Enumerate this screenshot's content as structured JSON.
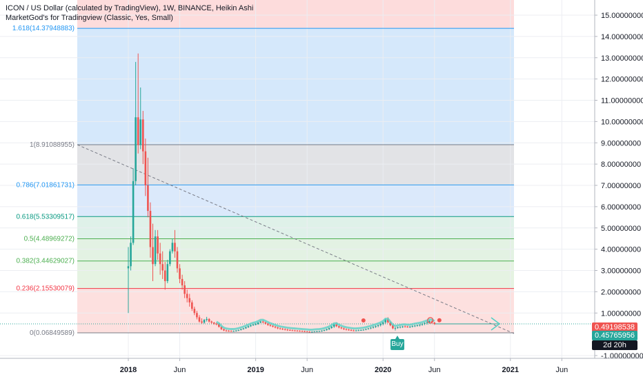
{
  "header": {
    "title": "ICON / US Dollar (calculated by TradingView), 1W, BINANCE, Heikin Ashi",
    "indicator": "MarketGod's for Tradingview (Classic, Yes, Small)"
  },
  "colors": {
    "up": "#26a69a",
    "down": "#ef5350",
    "grid": "#e1e3e8"
  },
  "chart_data": {
    "type": "candlestick",
    "title": "ICON / US Dollar (calculated by TradingView), 1W, BINANCE, Heikin Ashi",
    "ylim": [
      -1.0,
      15.5
    ],
    "y_ticks": [
      "15.00000000",
      "14.00000000",
      "13.00000000",
      "12.00000000",
      "11.00000000",
      "10.00000000",
      "9.00000000",
      "8.00000000",
      "7.00000000",
      "6.00000000",
      "5.00000000",
      "4.00000000",
      "3.00000000",
      "2.00000000",
      "1.00000000",
      "-1.00000000"
    ],
    "y_tick_values": [
      15,
      14,
      13,
      12,
      11,
      10,
      9,
      8,
      7,
      6,
      5,
      4,
      3,
      2,
      1,
      -1
    ],
    "x_ticks": [
      "2018",
      "Jun",
      "2019",
      "Jun",
      "2020",
      "Jun",
      "2021",
      "Jun"
    ],
    "x_tick_values": [
      0,
      21,
      52,
      73,
      104,
      125,
      156,
      177
    ],
    "fib_levels": [
      {
        "ratio": "1.618",
        "value": 14.37948883,
        "label": "1.618(14.37948883)",
        "color": "#2196f3"
      },
      {
        "ratio": "1",
        "value": 8.91088955,
        "label": "1(8.91088955)",
        "color": "#787b86"
      },
      {
        "ratio": "0.786",
        "value": 7.01861731,
        "label": "0.786(7.01861731)",
        "color": "#2196f3"
      },
      {
        "ratio": "0.618",
        "value": 5.53309517,
        "label": "0.618(5.53309517)",
        "color": "#089981"
      },
      {
        "ratio": "0.5",
        "value": 4.48969272,
        "label": "0.5(4.48969272)",
        "color": "#4caf50"
      },
      {
        "ratio": "0.382",
        "value": 3.44629027,
        "label": "0.382(3.44629027)",
        "color": "#4caf50"
      },
      {
        "ratio": "0.236",
        "value": 2.15530079,
        "label": "0.236(2.15530079)",
        "color": "#f23645"
      },
      {
        "ratio": "0",
        "value": 0.06849589,
        "label": "0(0.06849589)",
        "color": "#787b86"
      }
    ],
    "last_price": "0.49198538",
    "prev_price": "0.45765956",
    "countdown": "2d 20h",
    "buy_label": "Buy",
    "candles": [
      {
        "o": 3.1,
        "h": 4.1,
        "l": 1.0,
        "c": 3.2
      },
      {
        "o": 3.2,
        "h": 4.6,
        "l": 3.0,
        "c": 4.3
      },
      {
        "o": 4.3,
        "h": 7.8,
        "l": 4.2,
        "c": 7.2
      },
      {
        "o": 7.2,
        "h": 12.8,
        "l": 7.0,
        "c": 10.2
      },
      {
        "o": 10.2,
        "h": 13.2,
        "l": 8.5,
        "c": 8.9
      },
      {
        "o": 8.9,
        "h": 11.6,
        "l": 8.7,
        "c": 10.1
      },
      {
        "o": 10.1,
        "h": 10.5,
        "l": 8.0,
        "c": 8.6
      },
      {
        "o": 8.6,
        "h": 9.2,
        "l": 6.5,
        "c": 7.0
      },
      {
        "o": 7.0,
        "h": 8.3,
        "l": 5.5,
        "c": 5.8
      },
      {
        "o": 5.8,
        "h": 6.2,
        "l": 3.6,
        "c": 4.1
      },
      {
        "o": 4.1,
        "h": 5.2,
        "l": 2.5,
        "c": 3.3
      },
      {
        "o": 3.3,
        "h": 4.9,
        "l": 3.2,
        "c": 4.6
      },
      {
        "o": 4.6,
        "h": 4.9,
        "l": 3.5,
        "c": 3.8
      },
      {
        "o": 3.8,
        "h": 4.3,
        "l": 2.8,
        "c": 3.3
      },
      {
        "o": 3.3,
        "h": 3.9,
        "l": 2.6,
        "c": 3.0
      },
      {
        "o": 3.0,
        "h": 3.4,
        "l": 2.1,
        "c": 2.5
      },
      {
        "o": 2.5,
        "h": 3.5,
        "l": 2.4,
        "c": 3.3
      },
      {
        "o": 3.3,
        "h": 4.0,
        "l": 3.2,
        "c": 3.9
      },
      {
        "o": 3.9,
        "h": 4.5,
        "l": 3.8,
        "c": 4.3
      },
      {
        "o": 4.3,
        "h": 4.9,
        "l": 3.6,
        "c": 3.9
      },
      {
        "o": 3.9,
        "h": 4.1,
        "l": 2.9,
        "c": 3.1
      },
      {
        "o": 3.1,
        "h": 3.3,
        "l": 2.4,
        "c": 2.6
      },
      {
        "o": 2.6,
        "h": 2.8,
        "l": 2.1,
        "c": 2.3
      },
      {
        "o": 2.3,
        "h": 2.5,
        "l": 1.7,
        "c": 1.9
      },
      {
        "o": 1.9,
        "h": 2.1,
        "l": 1.5,
        "c": 1.7
      },
      {
        "o": 1.7,
        "h": 1.9,
        "l": 1.3,
        "c": 1.5
      },
      {
        "o": 1.5,
        "h": 1.6,
        "l": 1.1,
        "c": 1.2
      },
      {
        "o": 1.2,
        "h": 1.3,
        "l": 0.9,
        "c": 1.0
      },
      {
        "o": 1.0,
        "h": 1.1,
        "l": 0.7,
        "c": 0.8
      },
      {
        "o": 0.8,
        "h": 0.9,
        "l": 0.55,
        "c": 0.6
      },
      {
        "o": 0.6,
        "h": 0.75,
        "l": 0.5,
        "c": 0.55
      },
      {
        "o": 0.55,
        "h": 0.72,
        "l": 0.5,
        "c": 0.68
      },
      {
        "o": 0.68,
        "h": 0.82,
        "l": 0.6,
        "c": 0.72
      },
      {
        "o": 0.72,
        "h": 0.76,
        "l": 0.55,
        "c": 0.6
      },
      {
        "o": 0.6,
        "h": 0.64,
        "l": 0.5,
        "c": 0.55
      },
      {
        "o": 0.55,
        "h": 0.58,
        "l": 0.45,
        "c": 0.5
      },
      {
        "o": 0.5,
        "h": 0.55,
        "l": 0.42,
        "c": 0.48
      },
      {
        "o": 0.48,
        "h": 0.52,
        "l": 0.32,
        "c": 0.35
      },
      {
        "o": 0.35,
        "h": 0.38,
        "l": 0.2,
        "c": 0.24
      },
      {
        "o": 0.24,
        "h": 0.28,
        "l": 0.15,
        "c": 0.18
      },
      {
        "o": 0.18,
        "h": 0.22,
        "l": 0.12,
        "c": 0.16
      },
      {
        "o": 0.16,
        "h": 0.2,
        "l": 0.12,
        "c": 0.15
      },
      {
        "o": 0.15,
        "h": 0.19,
        "l": 0.12,
        "c": 0.14
      },
      {
        "o": 0.14,
        "h": 0.18,
        "l": 0.12,
        "c": 0.15
      },
      {
        "o": 0.15,
        "h": 0.2,
        "l": 0.13,
        "c": 0.17
      },
      {
        "o": 0.17,
        "h": 0.22,
        "l": 0.15,
        "c": 0.2
      },
      {
        "o": 0.2,
        "h": 0.26,
        "l": 0.18,
        "c": 0.24
      },
      {
        "o": 0.24,
        "h": 0.3,
        "l": 0.22,
        "c": 0.28
      },
      {
        "o": 0.28,
        "h": 0.36,
        "l": 0.26,
        "c": 0.33
      },
      {
        "o": 0.33,
        "h": 0.42,
        "l": 0.3,
        "c": 0.38
      },
      {
        "o": 0.38,
        "h": 0.46,
        "l": 0.35,
        "c": 0.42
      },
      {
        "o": 0.42,
        "h": 0.5,
        "l": 0.4,
        "c": 0.46
      },
      {
        "o": 0.46,
        "h": 0.52,
        "l": 0.42,
        "c": 0.48
      },
      {
        "o": 0.48,
        "h": 0.58,
        "l": 0.45,
        "c": 0.55
      },
      {
        "o": 0.55,
        "h": 0.64,
        "l": 0.52,
        "c": 0.6
      },
      {
        "o": 0.6,
        "h": 0.66,
        "l": 0.52,
        "c": 0.56
      },
      {
        "o": 0.56,
        "h": 0.6,
        "l": 0.46,
        "c": 0.5
      },
      {
        "o": 0.5,
        "h": 0.54,
        "l": 0.4,
        "c": 0.44
      },
      {
        "o": 0.44,
        "h": 0.48,
        "l": 0.36,
        "c": 0.4
      },
      {
        "o": 0.4,
        "h": 0.44,
        "l": 0.32,
        "c": 0.36
      },
      {
        "o": 0.36,
        "h": 0.4,
        "l": 0.28,
        "c": 0.32
      },
      {
        "o": 0.32,
        "h": 0.36,
        "l": 0.24,
        "c": 0.28
      },
      {
        "o": 0.28,
        "h": 0.32,
        "l": 0.22,
        "c": 0.26
      },
      {
        "o": 0.26,
        "h": 0.3,
        "l": 0.2,
        "c": 0.24
      },
      {
        "o": 0.24,
        "h": 0.28,
        "l": 0.18,
        "c": 0.22
      },
      {
        "o": 0.22,
        "h": 0.26,
        "l": 0.16,
        "c": 0.2
      },
      {
        "o": 0.2,
        "h": 0.24,
        "l": 0.16,
        "c": 0.19
      },
      {
        "o": 0.19,
        "h": 0.22,
        "l": 0.15,
        "c": 0.18
      },
      {
        "o": 0.18,
        "h": 0.21,
        "l": 0.14,
        "c": 0.17
      },
      {
        "o": 0.17,
        "h": 0.2,
        "l": 0.13,
        "c": 0.16
      },
      {
        "o": 0.16,
        "h": 0.19,
        "l": 0.12,
        "c": 0.15
      },
      {
        "o": 0.15,
        "h": 0.18,
        "l": 0.11,
        "c": 0.14
      },
      {
        "o": 0.14,
        "h": 0.17,
        "l": 0.1,
        "c": 0.13
      },
      {
        "o": 0.13,
        "h": 0.16,
        "l": 0.1,
        "c": 0.12
      },
      {
        "o": 0.12,
        "h": 0.15,
        "l": 0.09,
        "c": 0.11
      },
      {
        "o": 0.11,
        "h": 0.14,
        "l": 0.09,
        "c": 0.12
      },
      {
        "o": 0.12,
        "h": 0.15,
        "l": 0.1,
        "c": 0.13
      },
      {
        "o": 0.13,
        "h": 0.16,
        "l": 0.1,
        "c": 0.14
      },
      {
        "o": 0.14,
        "h": 0.17,
        "l": 0.11,
        "c": 0.15
      },
      {
        "o": 0.15,
        "h": 0.19,
        "l": 0.12,
        "c": 0.17
      },
      {
        "o": 0.17,
        "h": 0.22,
        "l": 0.14,
        "c": 0.2
      },
      {
        "o": 0.2,
        "h": 0.26,
        "l": 0.17,
        "c": 0.24
      },
      {
        "o": 0.24,
        "h": 0.32,
        "l": 0.2,
        "c": 0.3
      },
      {
        "o": 0.3,
        "h": 0.4,
        "l": 0.26,
        "c": 0.36
      },
      {
        "o": 0.36,
        "h": 0.5,
        "l": 0.3,
        "c": 0.46
      },
      {
        "o": 0.46,
        "h": 0.56,
        "l": 0.34,
        "c": 0.38
      },
      {
        "o": 0.38,
        "h": 0.42,
        "l": 0.28,
        "c": 0.32
      },
      {
        "o": 0.32,
        "h": 0.36,
        "l": 0.24,
        "c": 0.28
      },
      {
        "o": 0.28,
        "h": 0.32,
        "l": 0.2,
        "c": 0.24
      },
      {
        "o": 0.24,
        "h": 0.28,
        "l": 0.18,
        "c": 0.22
      },
      {
        "o": 0.22,
        "h": 0.26,
        "l": 0.17,
        "c": 0.2
      },
      {
        "o": 0.2,
        "h": 0.24,
        "l": 0.15,
        "c": 0.18
      },
      {
        "o": 0.18,
        "h": 0.22,
        "l": 0.14,
        "c": 0.17
      },
      {
        "o": 0.17,
        "h": 0.21,
        "l": 0.14,
        "c": 0.18
      },
      {
        "o": 0.18,
        "h": 0.22,
        "l": 0.15,
        "c": 0.19
      },
      {
        "o": 0.19,
        "h": 0.23,
        "l": 0.16,
        "c": 0.2
      },
      {
        "o": 0.2,
        "h": 0.24,
        "l": 0.17,
        "c": 0.22
      },
      {
        "o": 0.22,
        "h": 0.27,
        "l": 0.19,
        "c": 0.25
      },
      {
        "o": 0.25,
        "h": 0.3,
        "l": 0.22,
        "c": 0.28
      },
      {
        "o": 0.28,
        "h": 0.34,
        "l": 0.24,
        "c": 0.31
      },
      {
        "o": 0.31,
        "h": 0.38,
        "l": 0.27,
        "c": 0.35
      },
      {
        "o": 0.35,
        "h": 0.42,
        "l": 0.3,
        "c": 0.39
      },
      {
        "o": 0.39,
        "h": 0.46,
        "l": 0.33,
        "c": 0.43
      },
      {
        "o": 0.43,
        "h": 0.52,
        "l": 0.37,
        "c": 0.48
      },
      {
        "o": 0.48,
        "h": 0.6,
        "l": 0.42,
        "c": 0.56
      },
      {
        "o": 0.56,
        "h": 0.74,
        "l": 0.5,
        "c": 0.7
      },
      {
        "o": 0.7,
        "h": 0.8,
        "l": 0.52,
        "c": 0.56
      },
      {
        "o": 0.56,
        "h": 0.6,
        "l": 0.38,
        "c": 0.42
      },
      {
        "o": 0.42,
        "h": 0.46,
        "l": 0.24,
        "c": 0.28
      },
      {
        "o": 0.28,
        "h": 0.34,
        "l": 0.18,
        "c": 0.3
      },
      {
        "o": 0.3,
        "h": 0.36,
        "l": 0.26,
        "c": 0.33
      },
      {
        "o": 0.33,
        "h": 0.38,
        "l": 0.28,
        "c": 0.35
      },
      {
        "o": 0.35,
        "h": 0.4,
        "l": 0.3,
        "c": 0.37
      },
      {
        "o": 0.37,
        "h": 0.42,
        "l": 0.32,
        "c": 0.36
      },
      {
        "o": 0.36,
        "h": 0.4,
        "l": 0.31,
        "c": 0.34
      },
      {
        "o": 0.34,
        "h": 0.39,
        "l": 0.3,
        "c": 0.36
      },
      {
        "o": 0.36,
        "h": 0.42,
        "l": 0.32,
        "c": 0.39
      },
      {
        "o": 0.39,
        "h": 0.44,
        "l": 0.34,
        "c": 0.41
      },
      {
        "o": 0.41,
        "h": 0.46,
        "l": 0.36,
        "c": 0.43
      },
      {
        "o": 0.43,
        "h": 0.48,
        "l": 0.37,
        "c": 0.45
      },
      {
        "o": 0.45,
        "h": 0.52,
        "l": 0.4,
        "c": 0.49
      },
      {
        "o": 0.49,
        "h": 0.56,
        "l": 0.43,
        "c": 0.53
      },
      {
        "o": 0.53,
        "h": 0.6,
        "l": 0.46,
        "c": 0.57
      },
      {
        "o": 0.57,
        "h": 0.66,
        "l": 0.5,
        "c": 0.62
      },
      {
        "o": 0.62,
        "h": 0.7,
        "l": 0.5,
        "c": 0.55
      },
      {
        "o": 0.55,
        "h": 0.58,
        "l": 0.44,
        "c": 0.49
      }
    ],
    "markers": [
      {
        "type": "circle",
        "index": 96,
        "value": 0.65,
        "color": "#ef5350"
      },
      {
        "type": "circle",
        "index": 127,
        "value": 0.66,
        "color": "#ef5350"
      }
    ]
  }
}
